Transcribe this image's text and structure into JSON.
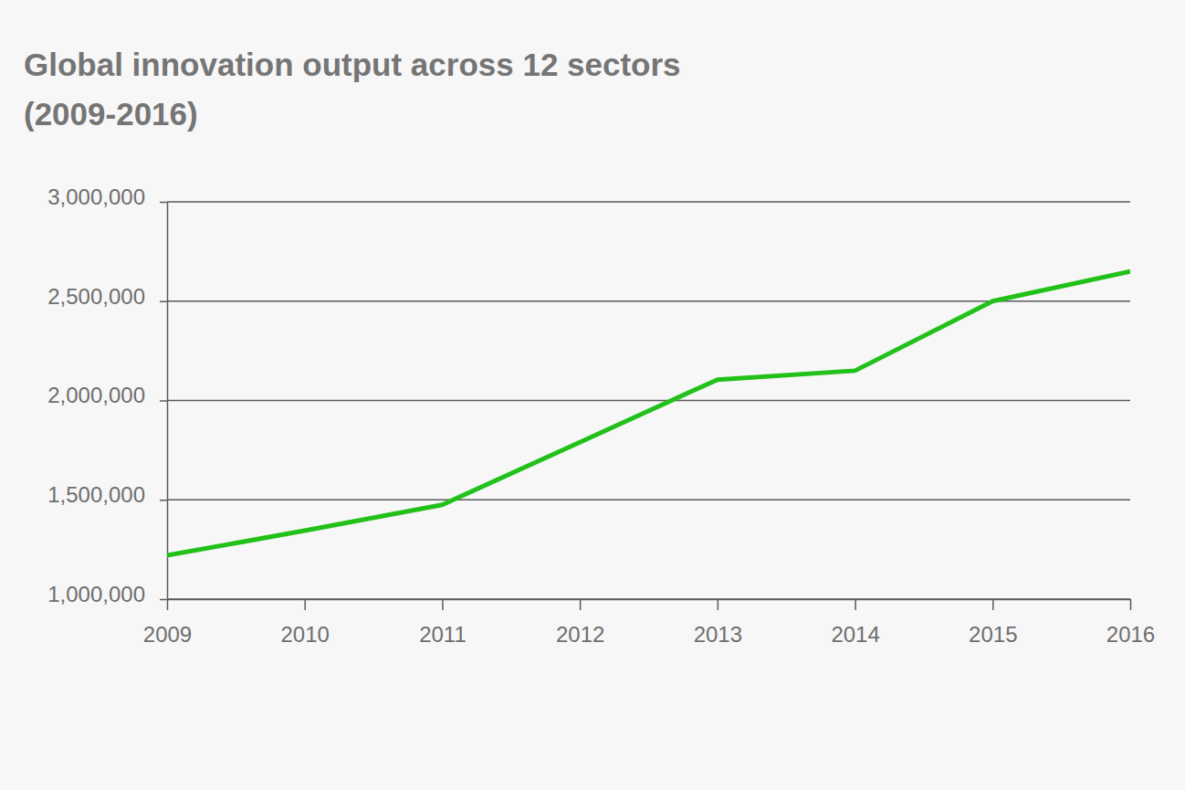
{
  "chart_data": {
    "type": "line",
    "title": "Global innovation output across 12 sectors",
    "subtitle": "(2009-2016)",
    "x": [
      2009,
      2010,
      2011,
      2012,
      2013,
      2014,
      2015,
      2016
    ],
    "values": [
      1220000,
      1345000,
      1475000,
      1790000,
      2105000,
      2150000,
      2500000,
      2650000
    ],
    "color": "#22c11a",
    "xlim": [
      2009,
      2016
    ],
    "xticks": [
      2009,
      2010,
      2011,
      2012,
      2013,
      2014,
      2015,
      2016
    ],
    "ylim": [
      1000000,
      3000000
    ],
    "yticks": [
      {
        "value": 1000000,
        "label": "1,000,000"
      },
      {
        "value": 1500000,
        "label": "1,500,000"
      },
      {
        "value": 2000000,
        "label": "2,000,000"
      },
      {
        "value": 2500000,
        "label": "2,500,000"
      },
      {
        "value": 3000000,
        "label": "3,000,000"
      }
    ],
    "grid": true
  }
}
